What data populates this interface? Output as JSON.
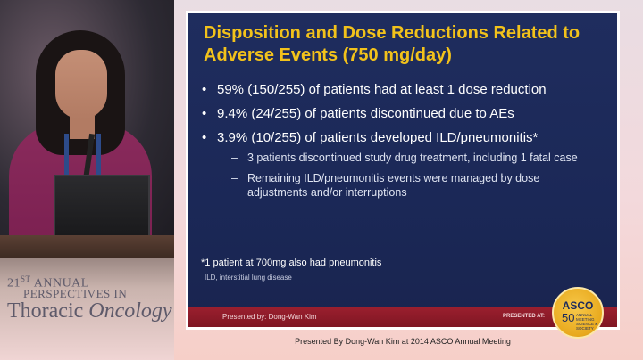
{
  "conference": {
    "line1_number": "21",
    "line1_suffix": "ST",
    "line1_rest": " ANNUAL",
    "line2": "PERSPECTIVES IN",
    "line3_plain": "Thoracic ",
    "line3_italic": "Oncology"
  },
  "slide": {
    "title_line1": "Disposition and Dose Reductions Related to",
    "title_line2": "Adverse Events (750 mg/day)",
    "bullets": [
      {
        "text": "59% (150/255) of patients had at least 1 dose reduction"
      },
      {
        "text": "9.4% (24/255) of patients discontinued due to AEs"
      },
      {
        "text": "3.9% (10/255) of patients  developed ILD/pneumonitis*"
      }
    ],
    "sub_bullets": [
      {
        "text": "3 patients discontinued study drug treatment, including 1 fatal case"
      },
      {
        "text": "Remaining ILD/pneumonitis events were managed by dose adjustments and/or interruptions"
      }
    ],
    "bullet_marker": "•",
    "sub_marker": "–",
    "footnote": "*1 patient at 700mg also had pneumonitis",
    "abbreviation": "ILD, interstitial lung disease",
    "presenter": "Presented by: Dong-Wan Kim",
    "presented_at": "PRESENTED AT:",
    "asco": {
      "name": "ASCO",
      "number": "50",
      "sub": "ANNUAL MEETING SCIENCE & SOCIETY"
    }
  },
  "caption": "Presented By Dong-Wan Kim at 2014 ASCO Annual Meeting",
  "colors": {
    "slide_bg": "#1f2d5e",
    "title": "#f2c21b",
    "bar": "#9a1f2e"
  }
}
